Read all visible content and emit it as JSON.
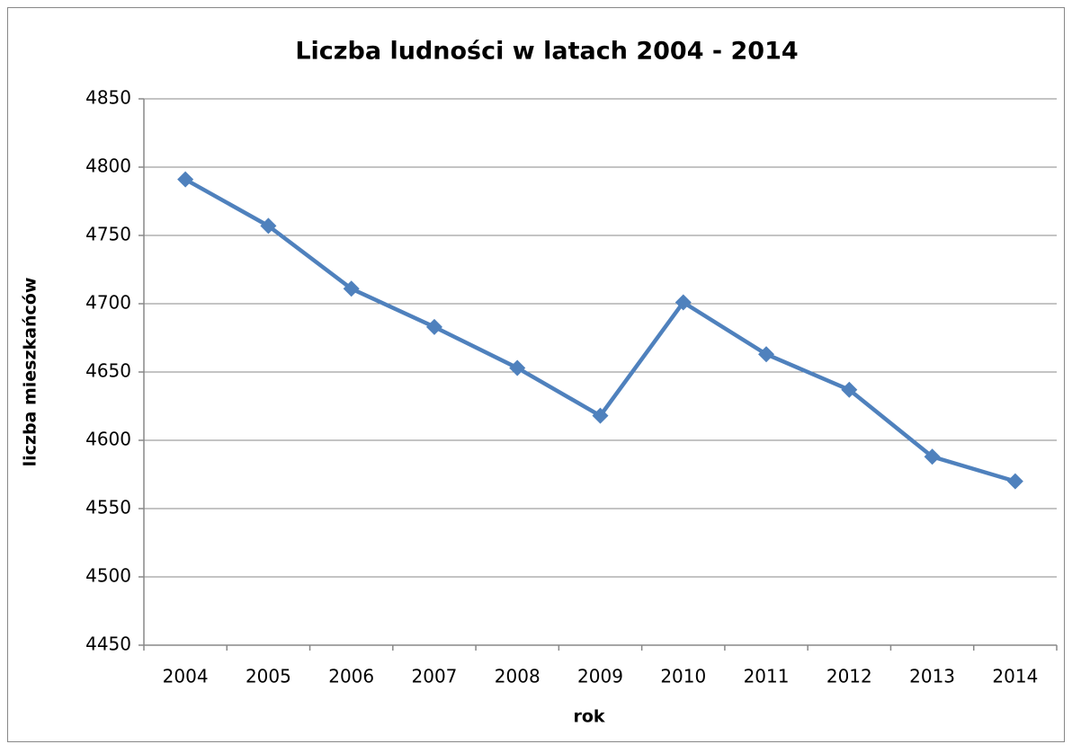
{
  "chart_data": {
    "type": "line",
    "title": "Liczba ludności w latach 2004 - 2014",
    "x_label": "rok",
    "y_label": "liczba mieszkańców",
    "categories": [
      "2004",
      "2005",
      "2006",
      "2007",
      "2008",
      "2009",
      "2010",
      "2011",
      "2012",
      "2013",
      "2014"
    ],
    "series": [
      {
        "name": "liczba mieszkańców",
        "color": "#4f81bd",
        "values": [
          4791,
          4757,
          4711,
          4683,
          4653,
          4618,
          4701,
          4663,
          4637,
          4588,
          4570
        ]
      }
    ],
    "ylim": [
      4450,
      4850
    ],
    "yticks": [
      4450,
      4500,
      4550,
      4600,
      4650,
      4700,
      4750,
      4800,
      4850
    ],
    "grid": true,
    "legend": false
  }
}
